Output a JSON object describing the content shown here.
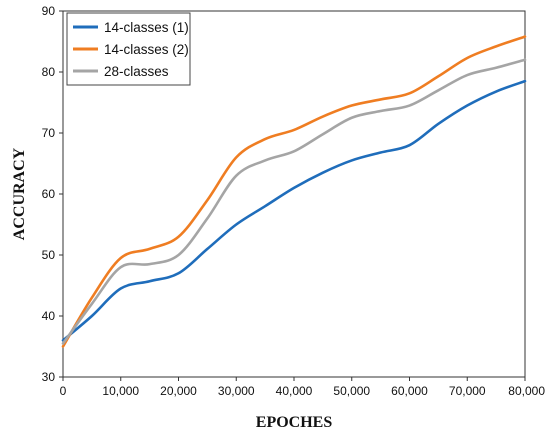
{
  "chart_data": {
    "type": "line",
    "xlabel": "EPOCHES",
    "ylabel": "ACCURACY",
    "xlim": [
      0,
      80000
    ],
    "ylim": [
      30,
      90
    ],
    "xticks": [
      0,
      10000,
      20000,
      30000,
      40000,
      50000,
      60000,
      70000,
      80000
    ],
    "xtick_labels": [
      "0",
      "10,000",
      "20,000",
      "30,000",
      "40,000",
      "50,000",
      "60,000",
      "70,000",
      "80,000"
    ],
    "yticks": [
      30,
      40,
      50,
      60,
      70,
      80,
      90
    ],
    "ytick_labels": [
      "30",
      "40",
      "50",
      "60",
      "70",
      "80",
      "90"
    ],
    "grid": false,
    "legend_position": "top-left",
    "x": [
      0,
      5000,
      10000,
      15000,
      20000,
      25000,
      30000,
      35000,
      40000,
      45000,
      50000,
      55000,
      60000,
      65000,
      70000,
      75000,
      80000
    ],
    "series": [
      {
        "name": "14-classes (1)",
        "color": "#1f6dbb",
        "values": [
          36,
          40,
          44.5,
          45.7,
          47,
          51,
          55,
          58,
          61,
          63.5,
          65.5,
          66.8,
          68,
          71.5,
          74.5,
          76.8,
          78.5
        ]
      },
      {
        "name": "14-classes (2)",
        "color": "#ef7d22",
        "values": [
          35,
          43,
          49.5,
          51,
          53,
          59,
          66,
          69,
          70.5,
          72.7,
          74.5,
          75.5,
          76.5,
          79.3,
          82.3,
          84.2,
          85.8
        ]
      },
      {
        "name": "28-classes",
        "color": "#a5a5a5",
        "values": [
          35.5,
          42,
          48,
          48.5,
          50,
          56,
          63,
          65.5,
          67,
          69.8,
          72.5,
          73.6,
          74.5,
          77,
          79.5,
          80.7,
          82
        ]
      }
    ]
  }
}
